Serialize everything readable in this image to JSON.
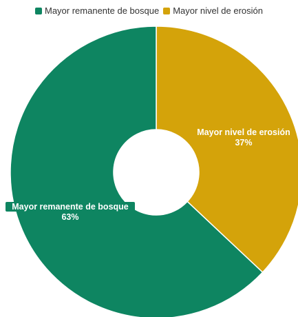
{
  "chart_data": {
    "type": "pie",
    "donut": true,
    "categories": [
      "Mayor remanente de bosque",
      "Mayor nivel de erosión"
    ],
    "values": [
      63,
      37
    ],
    "value_labels": [
      "63%",
      "37%"
    ],
    "colors": [
      "#0e8561",
      "#d4a30a"
    ],
    "legend_position": "top-center"
  }
}
